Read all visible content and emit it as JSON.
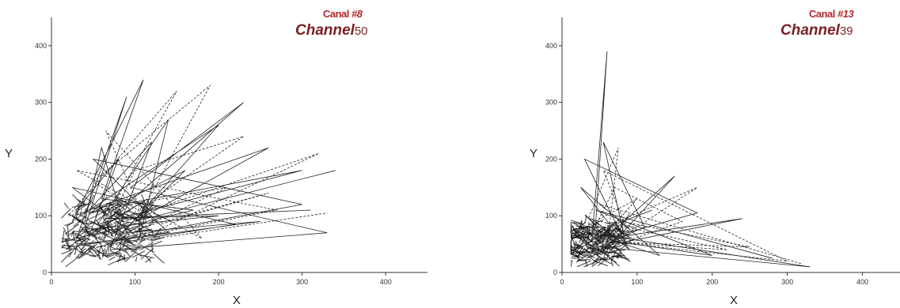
{
  "chart_data": [
    {
      "type": "line",
      "xlabel": "X",
      "ylabel": "Y",
      "xlim": [
        0,
        450
      ],
      "ylim": [
        0,
        450
      ],
      "xticks": [
        0,
        100,
        200,
        300,
        400
      ],
      "yticks": [
        0,
        100,
        200,
        300,
        400
      ],
      "grid": false,
      "overlay_old_label": "Canal",
      "overlay_old_number": "#8",
      "channel_label": "Channel",
      "channel_number": "50",
      "series": [
        {
          "values": [
            [
              40,
              80
            ],
            [
              90,
              310
            ],
            [
              30,
              60
            ],
            [
              170,
              110
            ],
            [
              60,
              130
            ],
            [
              110,
              340
            ],
            [
              25,
              90
            ],
            [
              200,
              260
            ],
            [
              80,
              60
            ],
            [
              300,
              120
            ],
            [
              50,
              200
            ],
            [
              140,
              70
            ],
            [
              35,
              50
            ],
            [
              230,
              300
            ],
            [
              95,
              150
            ],
            [
              330,
              70
            ],
            [
              70,
              40
            ],
            [
              120,
              230
            ],
            [
              45,
              110
            ],
            [
              260,
              220
            ],
            [
              100,
              90
            ],
            [
              340,
              180
            ]
          ]
        },
        {
          "values": [
            [
              55,
              70
            ],
            [
              150,
              320
            ],
            [
              20,
              100
            ],
            [
              210,
              150
            ],
            [
              75,
              55
            ],
            [
              270,
              110
            ],
            [
              30,
              180
            ],
            [
              180,
              60
            ],
            [
              65,
              250
            ],
            [
              110,
              100
            ],
            [
              40,
              70
            ],
            [
              320,
              210
            ],
            [
              85,
              45
            ],
            [
              190,
              330
            ],
            [
              50,
              160
            ],
            [
              130,
              85
            ],
            [
              260,
              140
            ],
            [
              60,
              60
            ],
            [
              100,
              180
            ],
            [
              230,
              240
            ],
            [
              35,
              40
            ],
            [
              330,
              105
            ]
          ]
        },
        {
          "values": [
            [
              30,
              110
            ],
            [
              80,
              200
            ],
            [
              45,
              65
            ],
            [
              115,
              130
            ],
            [
              20,
              45
            ],
            [
              250,
              90
            ],
            [
              90,
              70
            ],
            [
              60,
              220
            ],
            [
              40,
              90
            ],
            [
              160,
              180
            ],
            [
              70,
              50
            ],
            [
              220,
              85
            ],
            [
              25,
              150
            ],
            [
              105,
              60
            ],
            [
              140,
              270
            ],
            [
              55,
              85
            ],
            [
              300,
              180
            ],
            [
              85,
              120
            ],
            [
              35,
              75
            ],
            [
              200,
              100
            ],
            [
              65,
              95
            ],
            [
              310,
              110
            ]
          ]
        }
      ]
    },
    {
      "type": "line",
      "xlabel": "X",
      "ylabel": "Y",
      "xlim": [
        0,
        450
      ],
      "ylim": [
        0,
        450
      ],
      "xticks": [
        0,
        100,
        200,
        300,
        400
      ],
      "yticks": [
        0,
        100,
        200,
        300,
        400
      ],
      "grid": false,
      "overlay_old_label": "Canal",
      "overlay_old_number": "#13",
      "channel_label": "Channel",
      "channel_number": "39",
      "series": [
        {
          "values": [
            [
              40,
              60
            ],
            [
              60,
              390
            ],
            [
              45,
              90
            ],
            [
              90,
              40
            ],
            [
              25,
              150
            ],
            [
              130,
              30
            ],
            [
              35,
              70
            ],
            [
              330,
              10
            ],
            [
              50,
              45
            ],
            [
              240,
              95
            ],
            [
              60,
              60
            ],
            [
              180,
              105
            ],
            [
              30,
              200
            ],
            [
              85,
              50
            ],
            [
              55,
              230
            ],
            [
              110,
              80
            ],
            [
              40,
              40
            ],
            [
              150,
              170
            ],
            [
              70,
              55
            ],
            [
              200,
              30
            ],
            [
              45,
              110
            ],
            [
              280,
              25
            ]
          ]
        },
        {
          "values": [
            [
              30,
              80
            ],
            [
              100,
              130
            ],
            [
              50,
              55
            ],
            [
              220,
              40
            ],
            [
              35,
              95
            ],
            [
              75,
              220
            ],
            [
              60,
              45
            ],
            [
              180,
              150
            ],
            [
              40,
              70
            ],
            [
              120,
              110
            ],
            [
              25,
              60
            ],
            [
              300,
              20
            ],
            [
              55,
              180
            ],
            [
              90,
              65
            ],
            [
              45,
              35
            ],
            [
              160,
              90
            ],
            [
              70,
              150
            ],
            [
              35,
              55
            ],
            [
              250,
              45
            ],
            [
              80,
              90
            ],
            [
              50,
              120
            ],
            [
              320,
              15
            ]
          ]
        }
      ]
    }
  ]
}
